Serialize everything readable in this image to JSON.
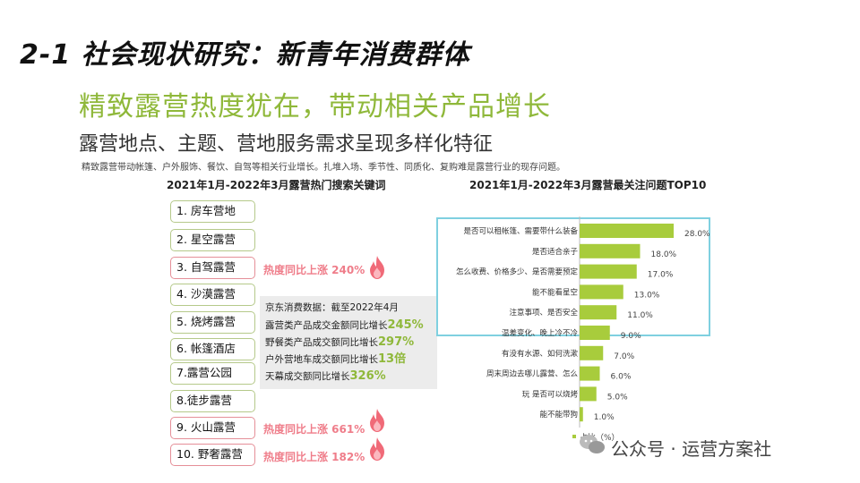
{
  "header": {
    "title": "2-1 社会现状研究：新青年消费群体",
    "subtitle": "精致露营热度犹在，带动相关产品增长",
    "subheading": "露营地点、主题、营地服务需求呈现多样化特征",
    "description": "精致露营带动帐篷、户外服饰、餐饮、自驾等相关行业增长。扎堆入场、季节性、同质化、复购难是露营行业的现存问题。"
  },
  "left_panel": {
    "heading": "2021年1月-2022年3月露营热门搜索关键词",
    "keywords": [
      {
        "label": "1. 房车营地",
        "hot": false
      },
      {
        "label": "2. 星空露营",
        "hot": false
      },
      {
        "label": "3. 自驾露营",
        "hot": true
      },
      {
        "label": "4. 沙漠露营",
        "hot": false
      },
      {
        "label": "5. 烧烤露营",
        "hot": false
      },
      {
        "label": "6. 帐篷酒店",
        "hot": false
      },
      {
        "label": "7.露营公园",
        "hot": false
      },
      {
        "label": "8.徒步露营",
        "hot": false
      },
      {
        "label": "9. 火山露营",
        "hot": true
      },
      {
        "label": "10. 野奢露营",
        "hot": true
      }
    ],
    "hot_labels": {
      "k3": "热度同比上涨 240%",
      "k9": "热度同比上涨 661%",
      "k10": "热度同比上涨 182%"
    },
    "jd_data": {
      "intro": "京东消费数据：截至2022年4月",
      "lines": [
        {
          "text": "露营类产品成交金额同比增长",
          "value": "245%"
        },
        {
          "text": "野餐类产品成交额同比增长",
          "value": "297%"
        },
        {
          "text": "户外营地车成交额同比增长",
          "value": "13倍"
        },
        {
          "text": "天幕成交额同比增长",
          "value": "326%"
        }
      ]
    }
  },
  "chart_data": {
    "type": "bar",
    "orientation": "horizontal",
    "title": "2021年1月-2022年3月露营最关注问题TOP10",
    "categories": [
      "是否可以租帐篷、需要带什么装备",
      "是否适合亲子",
      "怎么收费、价格多少、是否需要预定",
      "能不能看星空",
      "注意事项、是否安全",
      "温差变化、晚上冷不冷",
      "有没有水源、如何洗漱",
      "周末周边去哪儿露营、怎么",
      "玩    是否可以烧烤",
      "能不能带狗"
    ],
    "values": [
      28.0,
      18.0,
      17.0,
      13.0,
      11.0,
      9.0,
      7.0,
      6.0,
      5.0,
      1.0
    ],
    "value_labels": [
      "28.0%",
      "18.0%",
      "17.0%",
      "13.0%",
      "11.0%",
      "9.0%",
      "7.0%",
      "6.0%",
      "5.0%",
      "1.0%"
    ],
    "legend": "占比（%）",
    "legend_position": "bottom",
    "bar_color": "#a8cc3c"
  },
  "watermark": {
    "text": "公众号 · 运营方案社",
    "icon": "wechat-icon"
  }
}
